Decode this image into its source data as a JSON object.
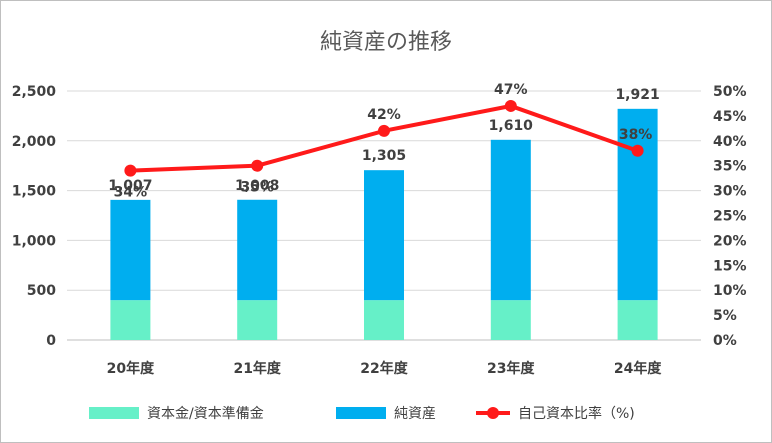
{
  "chart_data": {
    "type": "bar",
    "title": "純資産の推移",
    "categories": [
      "20年度",
      "21年度",
      "22年度",
      "23年度",
      "24年度"
    ],
    "series": [
      {
        "name": "資本金/資本準備金",
        "kind": "stacked-bar",
        "axis": "left",
        "color": "#66f0c8",
        "values": [
          400,
          400,
          400,
          400,
          400
        ]
      },
      {
        "name": "純資産",
        "kind": "stacked-bar",
        "axis": "left",
        "color": "#00aeef",
        "values": [
          1007,
          1008,
          1305,
          1610,
          1921
        ],
        "labels": [
          "1,007",
          "1,008",
          "1,305",
          "1,610",
          "1,921"
        ]
      },
      {
        "name": "自己資本比率（%)",
        "kind": "line",
        "axis": "right",
        "color": "#ff1a1a",
        "values": [
          34,
          35,
          42,
          47,
          38
        ],
        "labels": [
          "34%",
          "35%",
          "42%",
          "47%",
          "38%"
        ]
      }
    ],
    "y_left": {
      "ylim": [
        0,
        2500
      ],
      "ticks": [
        "0",
        "500",
        "1,000",
        "1,500",
        "2,000",
        "2,500"
      ],
      "tick_values": [
        0,
        500,
        1000,
        1500,
        2000,
        2500
      ]
    },
    "y_right": {
      "ylim": [
        0,
        50
      ],
      "ticks": [
        "0%",
        "5%",
        "10%",
        "15%",
        "20%",
        "25%",
        "30%",
        "35%",
        "40%",
        "45%",
        "50%"
      ],
      "tick_values": [
        0,
        5,
        10,
        15,
        20,
        25,
        30,
        35,
        40,
        45,
        50
      ]
    },
    "grid": true,
    "legend": "bottom"
  }
}
